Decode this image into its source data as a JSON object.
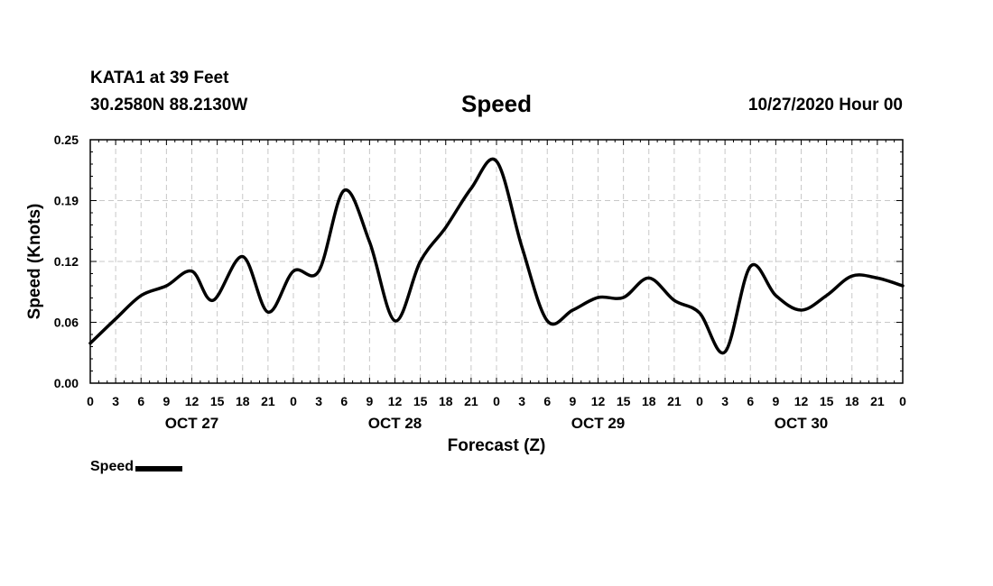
{
  "header": {
    "station": "KATA1 at 39 Feet",
    "coords": "30.2580N 88.2130W",
    "title": "Speed",
    "run_time": "10/27/2020 Hour 00"
  },
  "legend": {
    "label": "Speed"
  },
  "colors": {
    "line": "#000000",
    "grid": "#c8c8c8",
    "background": "#ffffff"
  },
  "chart_data": {
    "type": "line",
    "title": "Speed",
    "xlabel": "Forecast (Z)",
    "ylabel": "Speed (Knots)",
    "ylim": [
      0,
      0.25
    ],
    "yticks": [
      "0.00",
      "0.06",
      "0.12",
      "0.19",
      "0.25"
    ],
    "ytick_values": [
      0,
      0.0625,
      0.125,
      0.1875,
      0.25
    ],
    "xlim_hours": [
      0,
      96
    ],
    "xtick_labels": [
      "0",
      "3",
      "6",
      "9",
      "12",
      "15",
      "18",
      "21",
      "0",
      "3",
      "6",
      "9",
      "12",
      "15",
      "18",
      "21",
      "0",
      "3",
      "6",
      "9",
      "12",
      "15",
      "18",
      "21",
      "0",
      "3",
      "6",
      "9",
      "12",
      "15",
      "18",
      "21",
      "0"
    ],
    "day_labels": [
      "OCT 27",
      "OCT 28",
      "OCT 29",
      "OCT 30"
    ],
    "grid": true,
    "legend_position": "bottom-left",
    "series": [
      {
        "name": "Speed",
        "x_hours": [
          0,
          3,
          6,
          9,
          12,
          14.5,
          18,
          21,
          24,
          27,
          30,
          33,
          36,
          39,
          42,
          45,
          48,
          51,
          54,
          57,
          60,
          63,
          66,
          69,
          72,
          75,
          78,
          81,
          84,
          87,
          90,
          93,
          96
        ],
        "values": [
          0.041,
          0.066,
          0.09,
          0.1,
          0.115,
          0.085,
          0.13,
          0.073,
          0.115,
          0.115,
          0.198,
          0.145,
          0.064,
          0.125,
          0.16,
          0.2,
          0.228,
          0.14,
          0.064,
          0.075,
          0.088,
          0.088,
          0.108,
          0.085,
          0.072,
          0.032,
          0.12,
          0.09,
          0.075,
          0.09,
          0.11,
          0.108,
          0.1
        ]
      }
    ]
  }
}
